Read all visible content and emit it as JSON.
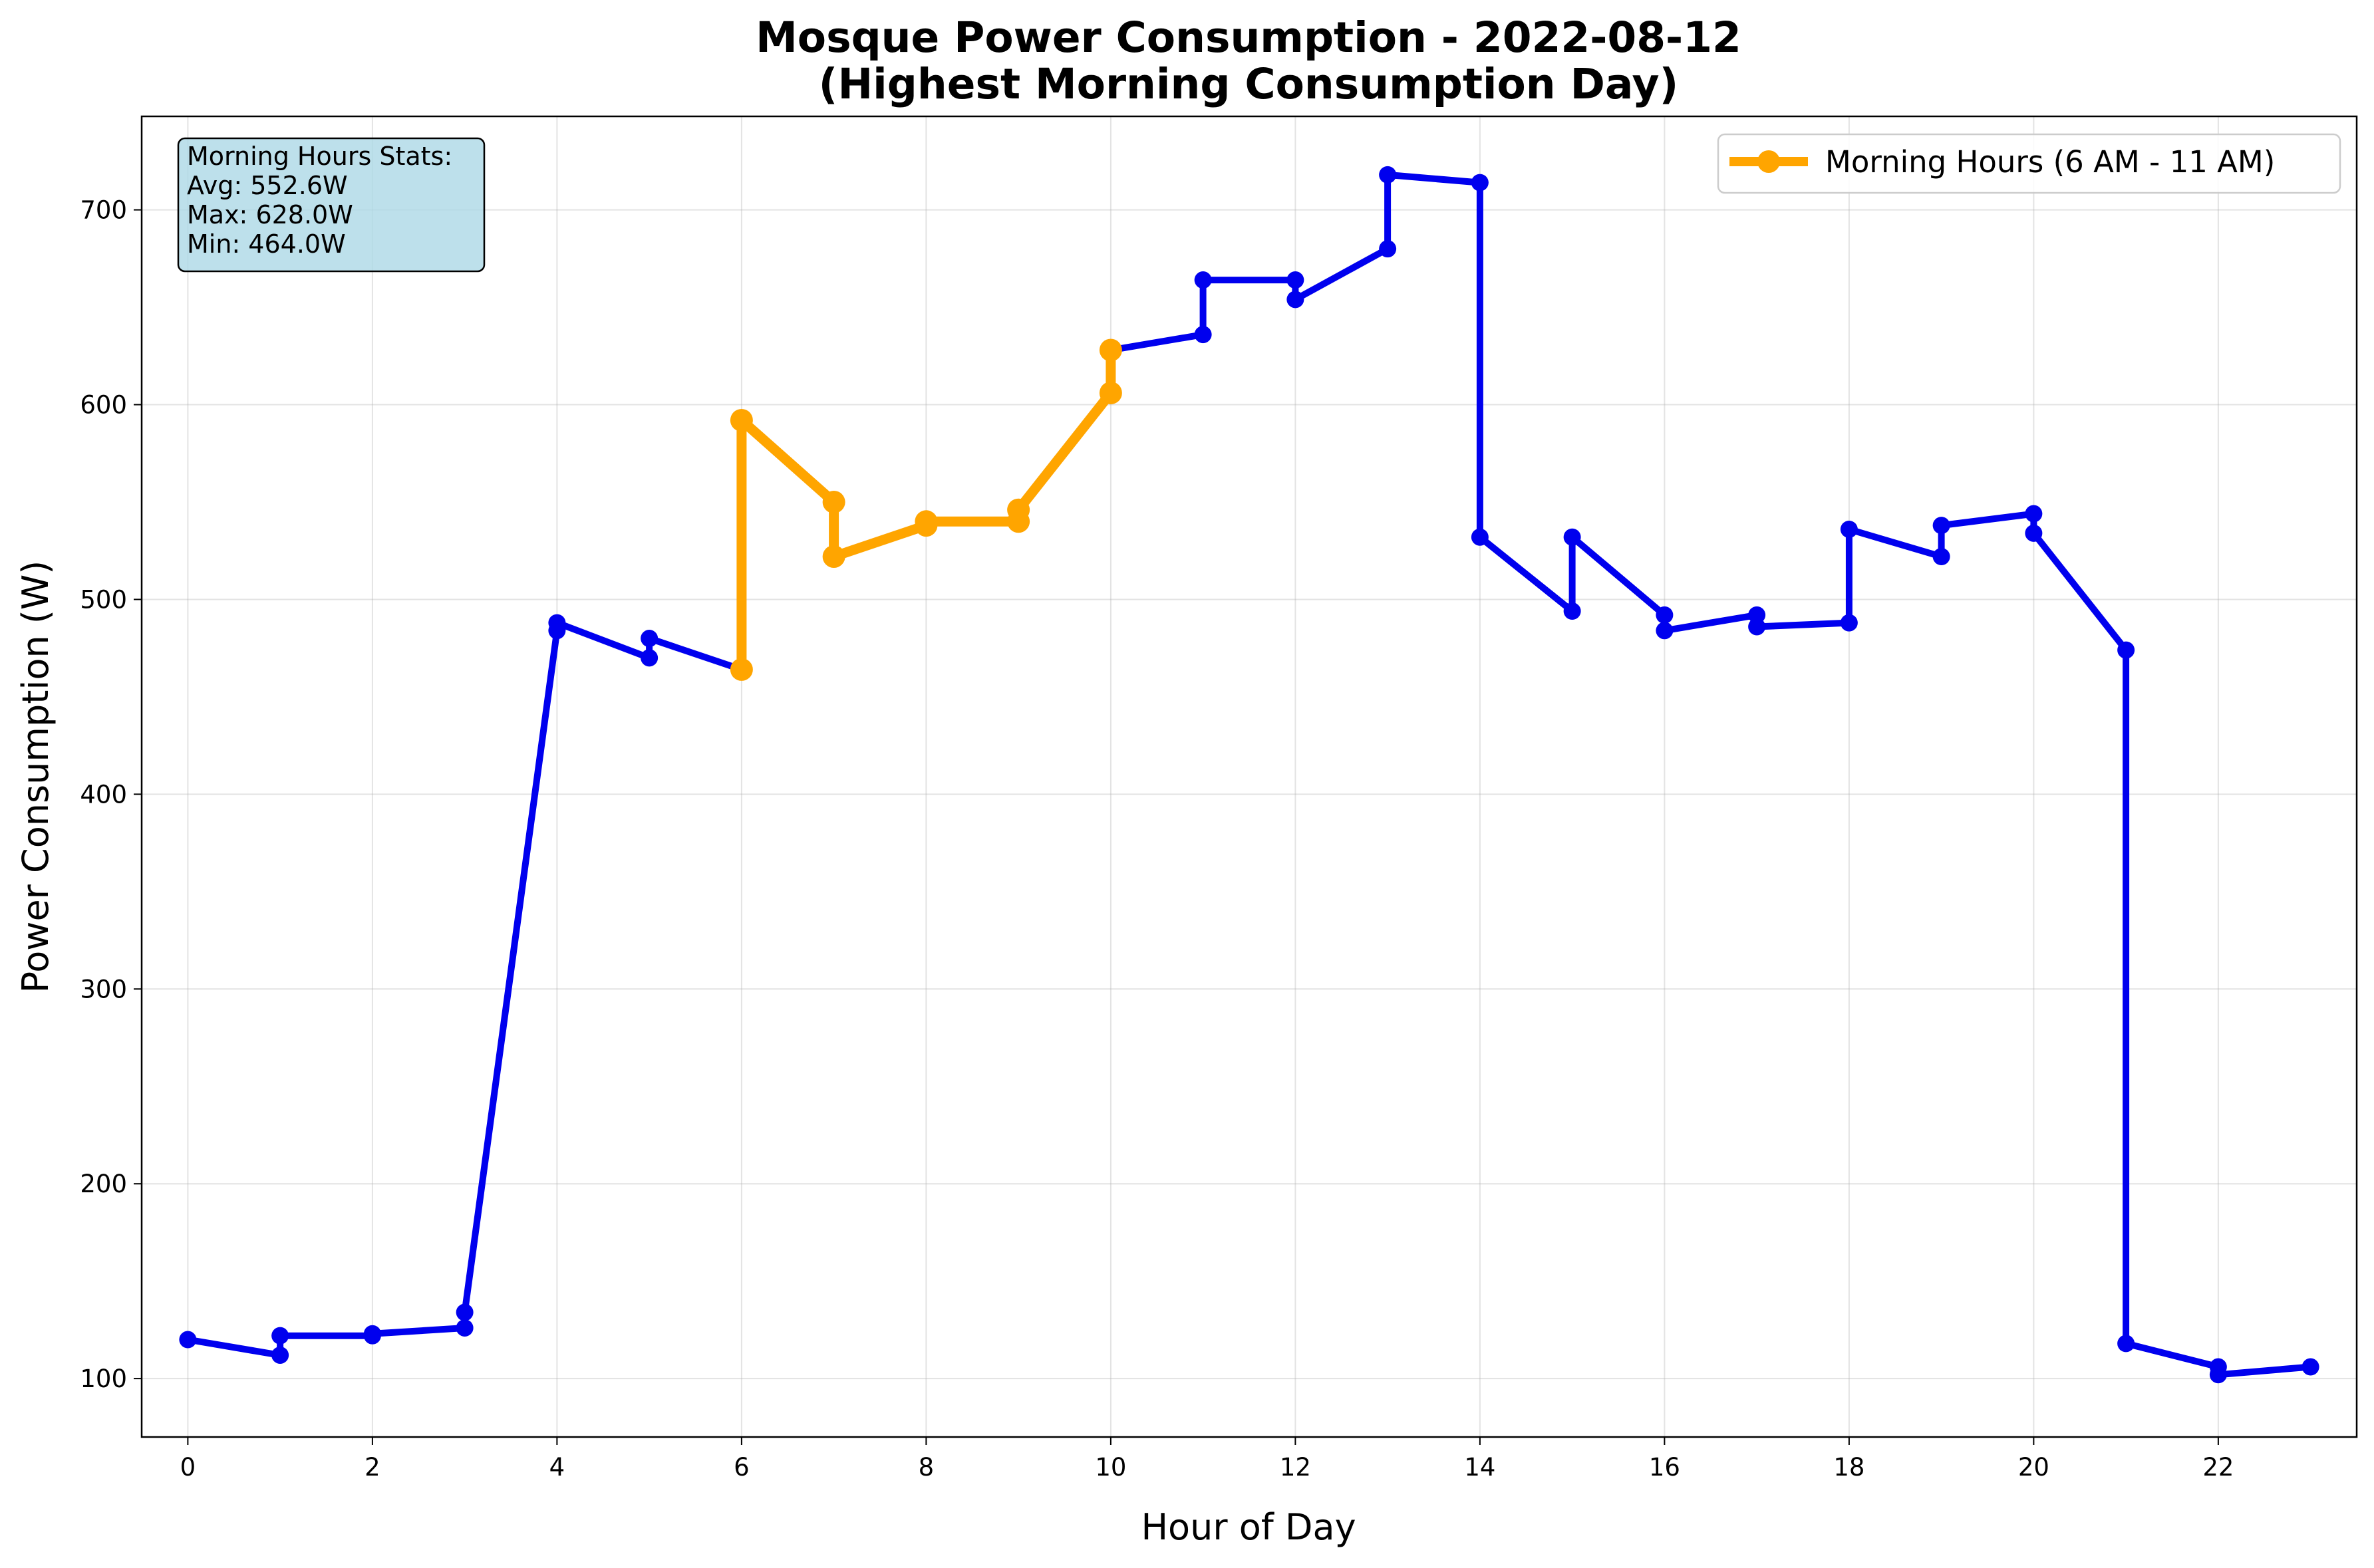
{
  "chart_data": {
    "type": "line",
    "title_line1": "Mosque Power Consumption - 2022-08-12",
    "title_line2": "(Highest Morning Consumption Day)",
    "xlabel": "Hour of Day",
    "ylabel": "Power Consumption (W)",
    "xlim": [
      -0.5,
      23.5
    ],
    "ylim": [
      70,
      748
    ],
    "x_ticks": [
      0,
      2,
      4,
      6,
      8,
      10,
      12,
      14,
      16,
      18,
      20,
      22
    ],
    "y_ticks": [
      100,
      200,
      300,
      400,
      500,
      600,
      700
    ],
    "grid": true,
    "legend_position": "top-right",
    "colors": {
      "all_hours": "#0000ee",
      "morning": "#ffa500",
      "stats_box": "#add8e6"
    },
    "series": [
      {
        "name": "",
        "x": [
          0,
          1,
          1,
          2,
          2,
          3,
          3,
          4,
          4,
          5,
          5,
          6,
          6,
          7,
          7,
          8,
          8,
          9,
          9,
          10,
          10,
          11,
          11,
          12,
          12,
          13,
          13,
          14,
          14,
          15,
          15,
          16,
          16,
          17,
          17,
          18,
          18,
          19,
          19,
          20,
          20,
          21,
          21,
          22,
          22,
          23
        ],
        "y": [
          120,
          112,
          122,
          122,
          123,
          126,
          134,
          484,
          488,
          470,
          480,
          464,
          592,
          550,
          522,
          538,
          540,
          540,
          546,
          606,
          628,
          636,
          664,
          664,
          654,
          680,
          718,
          714,
          532,
          494,
          532,
          492,
          484,
          492,
          486,
          488,
          536,
          522,
          538,
          544,
          534,
          474,
          118,
          106,
          102,
          106
        ]
      },
      {
        "name": "Morning Hours (6 AM - 11 AM)",
        "x": [
          6,
          6,
          7,
          7,
          8,
          8,
          9,
          9,
          10,
          10
        ],
        "y": [
          464,
          592,
          550,
          522,
          538,
          540,
          540,
          546,
          606,
          628
        ]
      }
    ],
    "stats": {
      "heading": "Morning Hours Stats:",
      "avg": "Avg: 552.6W",
      "max": "Max: 628.0W",
      "min": "Min: 464.0W"
    }
  }
}
